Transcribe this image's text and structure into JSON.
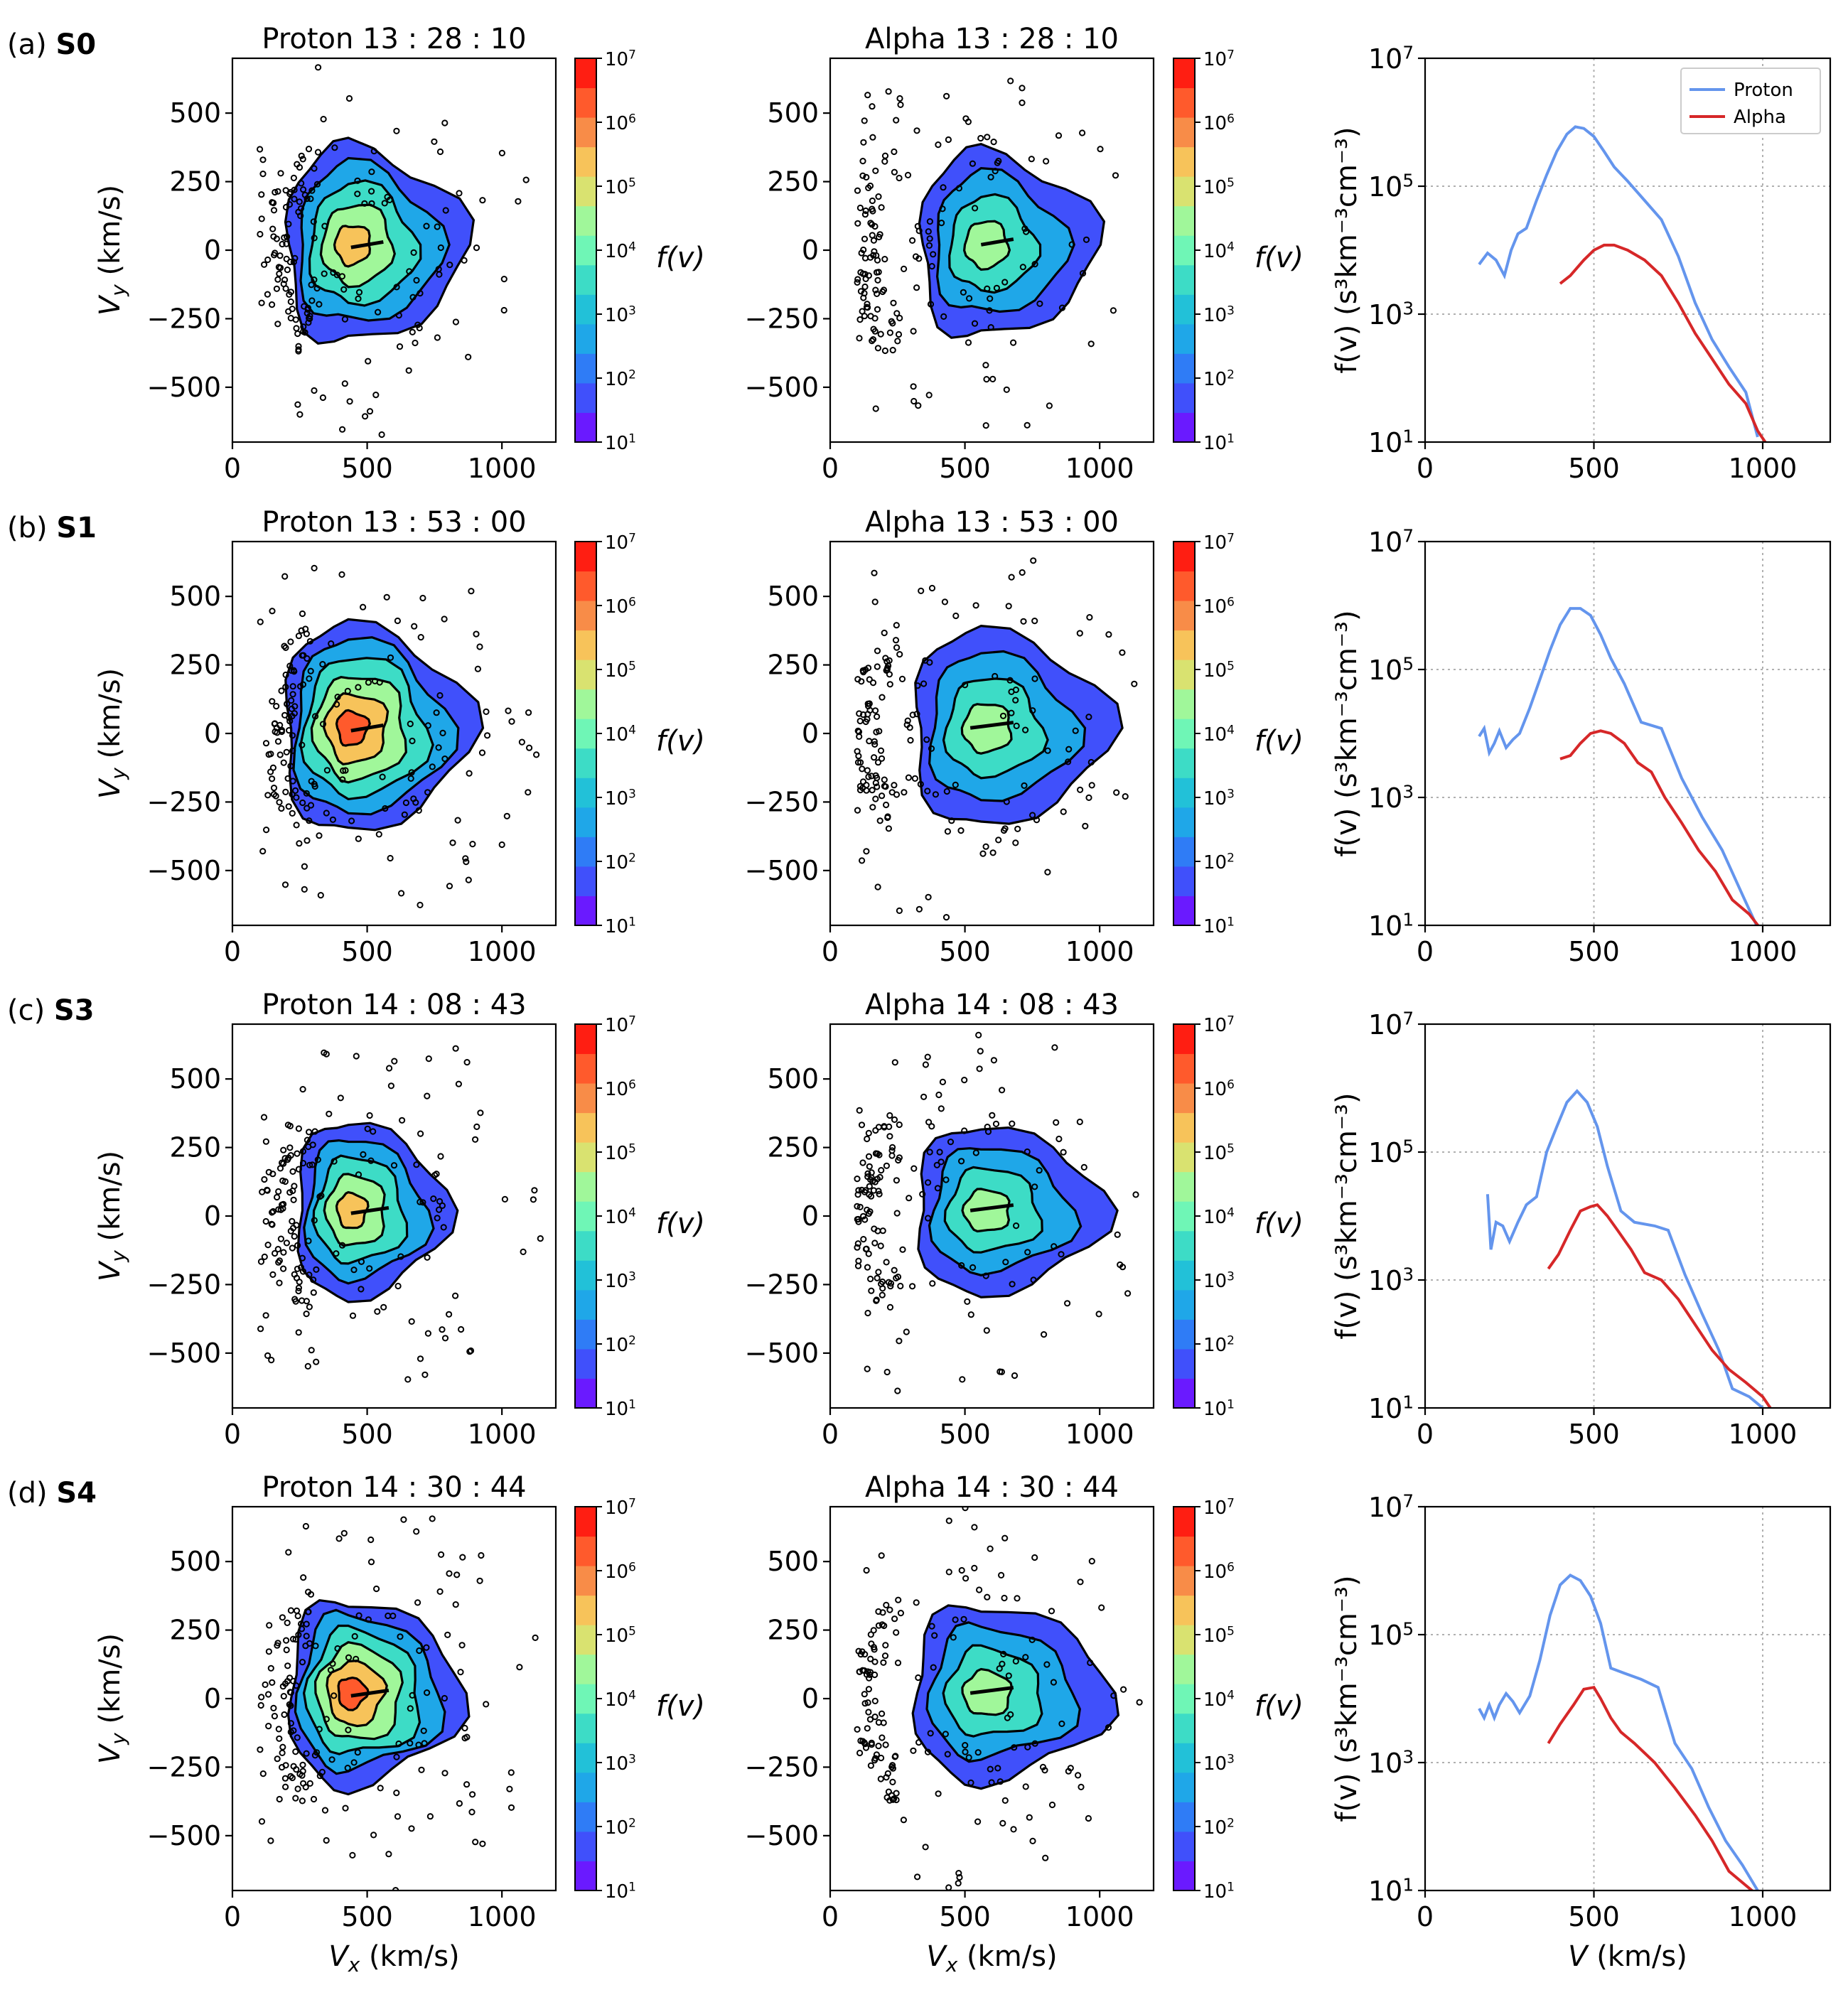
{
  "figure": {
    "rows": [
      {
        "label": "(a)",
        "label_bold": "S0",
        "proton_title": "Proton 13 : 28 : 10",
        "alpha_title": "Alpha 13 : 28 : 10",
        "proton_peak": 900000,
        "alpha_peak": 11000,
        "proton_ellipse": [
          0.5,
          0.38
        ],
        "alpha_ellipse": [
          0.45,
          0.4
        ],
        "proton_arrow": [
          440,
          10,
          560,
          30
        ],
        "alpha_arrow": [
          560,
          20,
          680,
          40
        ]
      },
      {
        "label": "(b)",
        "label_bold": "S1",
        "proton_title": "Proton 13 : 53 : 00",
        "alpha_title": "Alpha 13 : 53 : 00",
        "proton_peak": 1000000,
        "alpha_peak": 11000,
        "proton_ellipse": [
          0.52,
          0.4
        ],
        "alpha_ellipse": [
          0.5,
          0.42
        ],
        "proton_arrow": [
          440,
          10,
          560,
          30
        ],
        "alpha_arrow": [
          520,
          20,
          680,
          40
        ]
      },
      {
        "label": "(c)",
        "label_bold": "S3",
        "proton_title": "Proton 14 : 08 : 43",
        "alpha_title": "Alpha 14 : 08 : 43",
        "proton_peak": 900000,
        "alpha_peak": 14000,
        "proton_ellipse": [
          0.42,
          0.34
        ],
        "alpha_ellipse": [
          0.48,
          0.36
        ],
        "proton_arrow": [
          440,
          10,
          580,
          30
        ],
        "alpha_arrow": [
          520,
          20,
          680,
          40
        ]
      },
      {
        "label": "(d)",
        "label_bold": "S4",
        "proton_title": "Proton 14 : 30 : 44",
        "alpha_title": "Alpha 14 : 30 : 44",
        "proton_peak": 1000000,
        "alpha_peak": 16000,
        "proton_ellipse": [
          0.48,
          0.36
        ],
        "alpha_ellipse": [
          0.5,
          0.38
        ],
        "proton_arrow": [
          440,
          10,
          580,
          30
        ],
        "alpha_arrow": [
          520,
          20,
          680,
          40
        ]
      }
    ],
    "colorbar": {
      "label": "f(v)",
      "ticks_exponent": [
        "7",
        "6",
        "5",
        "4",
        "3",
        "2",
        "1"
      ],
      "base": "10"
    },
    "contour_axes": {
      "xlim": [
        0,
        1200
      ],
      "ylim": [
        -700,
        700
      ],
      "xticks": [
        "0",
        "500",
        "1000"
      ],
      "yticks": [
        "500",
        "250",
        "0",
        "−250",
        "−500"
      ],
      "ylabel_main": "V",
      "ylabel_sub": "y",
      "ylabel_unit": " (km/s)",
      "xlabel_main": "V",
      "xlabel_sub": "x",
      "xlabel_unit": " (km/s)"
    },
    "line_axes": {
      "xlim": [
        0,
        1200
      ],
      "ylim_exp": [
        1,
        7
      ],
      "xticks": [
        "0",
        "500",
        "1000"
      ],
      "yticks_exp": [
        "7",
        "5",
        "3",
        "1"
      ],
      "ylabel": "f(v) (s³km⁻³cm⁻³)",
      "xlabel_main": "V",
      "xlabel_unit": " (km/s)"
    },
    "legend": {
      "proton": "Proton",
      "alpha": "Alpha"
    },
    "colors": {
      "proton": "#6495ed",
      "alpha": "#d62728"
    }
  },
  "chart_data": [
    {
      "type": "line",
      "panel": "S0",
      "xlabel": "V (km/s)",
      "ylabel": "f(v) (s^3 km^-3 cm^-3)",
      "xlim": [
        0,
        1200
      ],
      "ylim": [
        10,
        10000000
      ],
      "yscale": "log",
      "series": [
        {
          "name": "Proton",
          "x": [
            160,
            185,
            210,
            235,
            255,
            275,
            300,
            330,
            360,
            390,
            420,
            445,
            470,
            500,
            530,
            560,
            600,
            650,
            700,
            750,
            800,
            850,
            900,
            950,
            985
          ],
          "values": [
            6000,
            9000,
            7000,
            4000,
            10000,
            18000,
            22000,
            60000,
            150000,
            350000,
            650000,
            850000,
            800000,
            600000,
            350000,
            200000,
            120000,
            60000,
            30000,
            8000,
            1500,
            400,
            150,
            60,
            12
          ]
        },
        {
          "name": "Alpha",
          "x": [
            400,
            430,
            470,
            500,
            530,
            560,
            600,
            650,
            700,
            750,
            800,
            850,
            900,
            950,
            985,
            1020
          ],
          "values": [
            3000,
            4000,
            7000,
            10000,
            12000,
            12000,
            10000,
            7000,
            4000,
            1500,
            500,
            200,
            80,
            40,
            15,
            8
          ]
        }
      ]
    },
    {
      "type": "line",
      "panel": "S1",
      "xlabel": "V (km/s)",
      "ylabel": "f(v) (s^3 km^-3 cm^-3)",
      "xlim": [
        0,
        1200
      ],
      "ylim": [
        10,
        10000000
      ],
      "yscale": "log",
      "series": [
        {
          "name": "Proton",
          "x": [
            160,
            175,
            190,
            205,
            220,
            240,
            260,
            280,
            310,
            340,
            370,
            400,
            430,
            460,
            490,
            520,
            550,
            590,
            640,
            700,
            760,
            820,
            880,
            940,
            990
          ],
          "values": [
            9000,
            12000,
            5000,
            7000,
            11000,
            6000,
            8000,
            10000,
            25000,
            70000,
            200000,
            500000,
            900000,
            900000,
            700000,
            350000,
            150000,
            60000,
            15000,
            12000,
            2000,
            500,
            150,
            30,
            8
          ]
        },
        {
          "name": "Alpha",
          "x": [
            400,
            430,
            460,
            490,
            520,
            550,
            590,
            630,
            670,
            710,
            760,
            810,
            860,
            910,
            960,
            1000
          ],
          "values": [
            4000,
            4500,
            7000,
            10000,
            11000,
            10000,
            7000,
            3500,
            2500,
            1000,
            400,
            150,
            70,
            25,
            15,
            8
          ]
        }
      ]
    },
    {
      "type": "line",
      "panel": "S3",
      "xlabel": "V (km/s)",
      "ylabel": "f(v) (s^3 km^-3 cm^-3)",
      "xlim": [
        0,
        1200
      ],
      "ylim": [
        10,
        10000000
      ],
      "yscale": "log",
      "series": [
        {
          "name": "Proton",
          "x": [
            185,
            195,
            210,
            230,
            250,
            275,
            300,
            330,
            360,
            390,
            420,
            450,
            480,
            510,
            540,
            580,
            620,
            680,
            720,
            770,
            820,
            870,
            910,
            960,
            1000
          ],
          "values": [
            22000,
            3000,
            8000,
            7000,
            4000,
            8000,
            15000,
            20000,
            100000,
            250000,
            600000,
            900000,
            600000,
            250000,
            60000,
            12000,
            8000,
            7000,
            6000,
            1200,
            300,
            80,
            20,
            15,
            10
          ]
        },
        {
          "name": "Alpha",
          "x": [
            365,
            395,
            430,
            460,
            490,
            510,
            540,
            570,
            610,
            650,
            700,
            750,
            800,
            850,
            900,
            950,
            1000,
            1035
          ],
          "values": [
            1500,
            2500,
            6000,
            12000,
            14000,
            15000,
            10000,
            6000,
            3000,
            1300,
            1000,
            500,
            200,
            80,
            40,
            25,
            15,
            8
          ]
        }
      ]
    },
    {
      "type": "line",
      "panel": "S4",
      "xlabel": "V (km/s)",
      "ylabel": "f(v) (s^3 km^-3 cm^-3)",
      "xlim": [
        0,
        1200
      ],
      "ylim": [
        10,
        10000000
      ],
      "yscale": "log",
      "series": [
        {
          "name": "Proton",
          "x": [
            160,
            175,
            190,
            205,
            220,
            240,
            260,
            280,
            310,
            340,
            370,
            400,
            430,
            460,
            490,
            520,
            550,
            590,
            640,
            690,
            740,
            790,
            840,
            890,
            940,
            985
          ],
          "values": [
            7000,
            5000,
            8000,
            5000,
            8000,
            12000,
            9000,
            6000,
            11000,
            40000,
            200000,
            600000,
            850000,
            700000,
            400000,
            150000,
            30000,
            25000,
            20000,
            15000,
            2000,
            800,
            200,
            60,
            25,
            10
          ]
        },
        {
          "name": "Alpha",
          "x": [
            365,
            400,
            440,
            470,
            500,
            520,
            550,
            580,
            620,
            680,
            740,
            800,
            850,
            900,
            950,
            990
          ],
          "values": [
            2000,
            4000,
            8000,
            14000,
            15000,
            10000,
            5000,
            3000,
            2000,
            1000,
            400,
            150,
            60,
            20,
            12,
            8
          ]
        }
      ]
    }
  ]
}
